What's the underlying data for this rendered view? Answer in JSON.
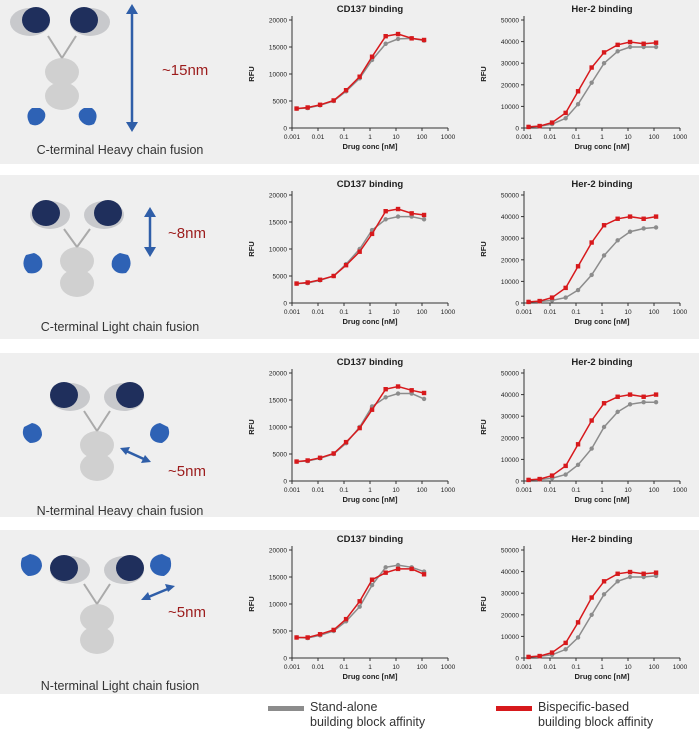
{
  "colors": {
    "panel_bg": "#efefef",
    "standalone": "#8c8c8c",
    "bispecific": "#d7191c",
    "size_label": "#9c1c1c",
    "arrow": "#2f5ea8",
    "fab_dark": "#1f2f5c",
    "fab_light": "#c8c9cc",
    "fc_grey": "#d0d0d0",
    "binder_blue": "#2e62b5"
  },
  "common_axes": {
    "xlabel": "Drug conc [nM]",
    "ylabel": "RFU",
    "x_ticks": [
      "0.001",
      "0.01",
      "0.1",
      "1",
      "10",
      "100",
      "1000"
    ]
  },
  "panels": [
    {
      "caption": "C-terminal Heavy chain fusion",
      "size": "~15nm",
      "arrow": "vertical",
      "cd137_title": "CD137 binding",
      "her2_title": "Her-2 binding"
    },
    {
      "caption": "C-terminal Light chain fusion",
      "size": "~8nm",
      "arrow": "vertical",
      "cd137_title": "CD137 binding",
      "her2_title": "Her-2 binding"
    },
    {
      "caption": "N-terminal Heavy chain fusion",
      "size": "~5nm",
      "arrow": "diagonal",
      "cd137_title": "CD137 binding",
      "her2_title": "Her-2 binding"
    },
    {
      "caption": "N-terminal Light chain fusion",
      "size": "~5nm",
      "arrow": "diagonal",
      "cd137_title": "CD137 binding",
      "her2_title": "Her-2 binding"
    }
  ],
  "legend": {
    "standalone_line1": "Stand-alone",
    "standalone_line2": "building block affinity",
    "bispecific_line1": "Bispecific-based",
    "bispecific_line2": "building block affinity"
  },
  "chart_data": [
    {
      "type": "line",
      "title": "CD137 binding",
      "xlabel": "Drug conc [nM]",
      "ylabel": "RFU",
      "x_scale": "log",
      "xlim": [
        0.001,
        1000
      ],
      "ylim": [
        0,
        20000
      ],
      "y_ticks": [
        0,
        5000,
        10000,
        15000,
        20000
      ],
      "x": [
        0.0015,
        0.004,
        0.012,
        0.04,
        0.12,
        0.4,
        1.2,
        4,
        12,
        40,
        120
      ],
      "series": [
        {
          "name": "Stand-alone building block affinity",
          "values": [
            3600,
            3700,
            4200,
            5000,
            6800,
            9200,
            12600,
            15600,
            16500,
            16600,
            16200
          ]
        },
        {
          "name": "Bispecific-based building block affinity",
          "values": [
            3600,
            3800,
            4300,
            5100,
            7000,
            9500,
            13200,
            17000,
            17400,
            16600,
            16300
          ]
        }
      ]
    },
    {
      "type": "line",
      "title": "Her-2 binding",
      "xlabel": "Drug conc [nM]",
      "ylabel": "RFU",
      "x_scale": "log",
      "xlim": [
        0.001,
        1000
      ],
      "ylim": [
        0,
        50000
      ],
      "y_ticks": [
        0,
        10000,
        20000,
        30000,
        40000,
        50000
      ],
      "x": [
        0.0015,
        0.004,
        0.012,
        0.04,
        0.12,
        0.4,
        1.2,
        4,
        12,
        40,
        120
      ],
      "series": [
        {
          "name": "Stand-alone building block affinity",
          "values": [
            500,
            800,
            1800,
            4500,
            11000,
            21000,
            30000,
            35500,
            37500,
            37500,
            37500
          ]
        },
        {
          "name": "Bispecific-based building block affinity",
          "values": [
            500,
            900,
            2500,
            7000,
            17000,
            28000,
            35000,
            38500,
            39800,
            39000,
            39500
          ]
        }
      ]
    },
    {
      "type": "line",
      "title": "CD137 binding",
      "xlabel": "Drug conc [nM]",
      "ylabel": "RFU",
      "x_scale": "log",
      "xlim": [
        0.001,
        1000
      ],
      "ylim": [
        0,
        20000
      ],
      "y_ticks": [
        0,
        5000,
        10000,
        15000,
        20000
      ],
      "x": [
        0.0015,
        0.004,
        0.012,
        0.04,
        0.12,
        0.4,
        1.2,
        4,
        12,
        40,
        120
      ],
      "series": [
        {
          "name": "Stand-alone building block affinity",
          "values": [
            3600,
            3700,
            4200,
            5000,
            7200,
            10000,
            13500,
            15500,
            16000,
            16000,
            15500
          ]
        },
        {
          "name": "Bispecific-based building block affinity",
          "values": [
            3600,
            3800,
            4300,
            5000,
            7000,
            9500,
            12800,
            17000,
            17400,
            16600,
            16300
          ]
        }
      ]
    },
    {
      "type": "line",
      "title": "Her-2 binding",
      "xlabel": "Drug conc [nM]",
      "ylabel": "RFU",
      "x_scale": "log",
      "xlim": [
        0.001,
        1000
      ],
      "ylim": [
        0,
        50000
      ],
      "y_ticks": [
        0,
        10000,
        20000,
        30000,
        40000,
        50000
      ],
      "x": [
        0.0015,
        0.004,
        0.012,
        0.04,
        0.12,
        0.4,
        1.2,
        4,
        12,
        40,
        120
      ],
      "series": [
        {
          "name": "Stand-alone building block affinity",
          "values": [
            500,
            700,
            1200,
            2500,
            6000,
            13000,
            22000,
            29000,
            33000,
            34500,
            35000
          ]
        },
        {
          "name": "Bispecific-based building block affinity",
          "values": [
            500,
            900,
            2500,
            7000,
            17000,
            28000,
            36000,
            39000,
            40000,
            39000,
            40000
          ]
        }
      ]
    },
    {
      "type": "line",
      "title": "CD137 binding",
      "xlabel": "Drug conc [nM]",
      "ylabel": "RFU",
      "x_scale": "log",
      "xlim": [
        0.001,
        1000
      ],
      "ylim": [
        0,
        20000
      ],
      "y_ticks": [
        0,
        5000,
        10000,
        15000,
        20000
      ],
      "x": [
        0.0015,
        0.004,
        0.012,
        0.04,
        0.12,
        0.4,
        1.2,
        4,
        12,
        40,
        120
      ],
      "series": [
        {
          "name": "Stand-alone building block affinity",
          "values": [
            3600,
            3700,
            4200,
            5000,
            7000,
            10000,
            13800,
            15500,
            16200,
            16200,
            15200
          ]
        },
        {
          "name": "Bispecific-based building block affinity",
          "values": [
            3600,
            3800,
            4300,
            5100,
            7200,
            9800,
            13200,
            17000,
            17500,
            16800,
            16300
          ]
        }
      ]
    },
    {
      "type": "line",
      "title": "Her-2 binding",
      "xlabel": "Drug conc [nM]",
      "ylabel": "RFU",
      "x_scale": "log",
      "xlim": [
        0.001,
        1000
      ],
      "ylim": [
        0,
        50000
      ],
      "y_ticks": [
        0,
        10000,
        20000,
        30000,
        40000,
        50000
      ],
      "x": [
        0.0015,
        0.004,
        0.012,
        0.04,
        0.12,
        0.4,
        1.2,
        4,
        12,
        40,
        120
      ],
      "series": [
        {
          "name": "Stand-alone building block affinity",
          "values": [
            500,
            700,
            1300,
            3000,
            7500,
            15000,
            25000,
            32000,
            35500,
            36500,
            36500
          ]
        },
        {
          "name": "Bispecific-based building block affinity",
          "values": [
            500,
            900,
            2500,
            7000,
            17000,
            28000,
            36000,
            39000,
            40000,
            39000,
            40000
          ]
        }
      ]
    },
    {
      "type": "line",
      "title": "CD137 binding",
      "xlabel": "Drug conc [nM]",
      "ylabel": "RFU",
      "x_scale": "log",
      "xlim": [
        0.001,
        1000
      ],
      "ylim": [
        0,
        20000
      ],
      "y_ticks": [
        0,
        5000,
        10000,
        15000,
        20000
      ],
      "x": [
        0.0015,
        0.004,
        0.012,
        0.04,
        0.12,
        0.4,
        1.2,
        4,
        12,
        40,
        120
      ],
      "series": [
        {
          "name": "Stand-alone building block affinity",
          "values": [
            3800,
            3700,
            4200,
            5000,
            6800,
            9500,
            13500,
            16800,
            17200,
            16800,
            16000
          ]
        },
        {
          "name": "Bispecific-based building block affinity",
          "values": [
            3800,
            3800,
            4400,
            5200,
            7200,
            10500,
            14500,
            15800,
            16500,
            16500,
            15500
          ]
        }
      ]
    },
    {
      "type": "line",
      "title": "Her-2 binding",
      "xlabel": "Drug conc [nM]",
      "ylabel": "RFU",
      "x_scale": "log",
      "xlim": [
        0.001,
        1000
      ],
      "ylim": [
        0,
        50000
      ],
      "y_ticks": [
        0,
        10000,
        20000,
        30000,
        40000,
        50000
      ],
      "x": [
        0.0015,
        0.004,
        0.012,
        0.04,
        0.12,
        0.4,
        1.2,
        4,
        12,
        40,
        120
      ],
      "series": [
        {
          "name": "Stand-alone building block affinity",
          "values": [
            500,
            800,
            1500,
            4000,
            9500,
            20000,
            29500,
            35500,
            37500,
            37500,
            38000
          ]
        },
        {
          "name": "Bispecific-based building block affinity",
          "values": [
            500,
            900,
            2500,
            7000,
            16500,
            28000,
            35500,
            39000,
            39800,
            39000,
            39500
          ]
        }
      ]
    }
  ]
}
